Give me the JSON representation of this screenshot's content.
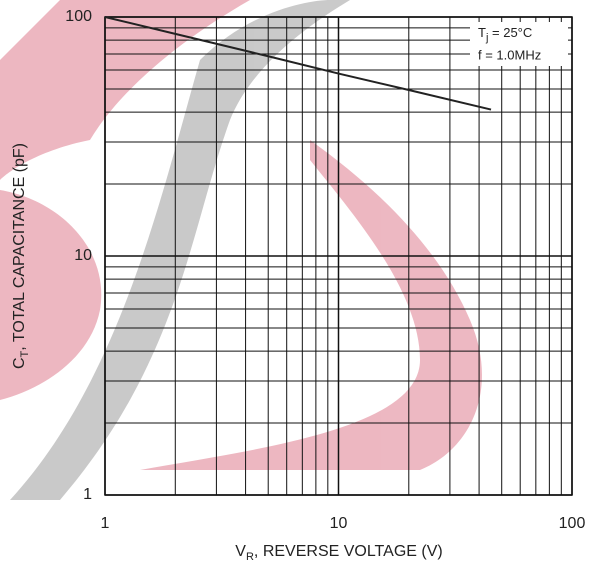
{
  "chart_data": {
    "type": "line",
    "xlabel": {
      "main": "V",
      "sub": "R",
      "rest": ", REVERSE VOLTAGE (V)"
    },
    "ylabel": {
      "main": "C",
      "sub": "T",
      "rest": ", TOTAL CAPACITANCE (pF)"
    },
    "annotations": [
      {
        "main": "T",
        "sub": "j",
        "rest": " = 25°C"
      },
      {
        "main": "f = 1.0MHz"
      }
    ],
    "x": [
      1,
      2,
      5,
      10,
      20,
      45
    ],
    "series": [
      {
        "name": "CT",
        "color": "#222222",
        "values": [
          100,
          85,
          68.5,
          58,
          49.5,
          41
        ]
      }
    ],
    "xlim": [
      1,
      100
    ],
    "ylim": [
      1,
      100
    ],
    "xticks": [
      1,
      10,
      100
    ],
    "yticks": [
      1,
      10,
      100
    ],
    "xscale": "log",
    "yscale": "log",
    "grid": true
  }
}
